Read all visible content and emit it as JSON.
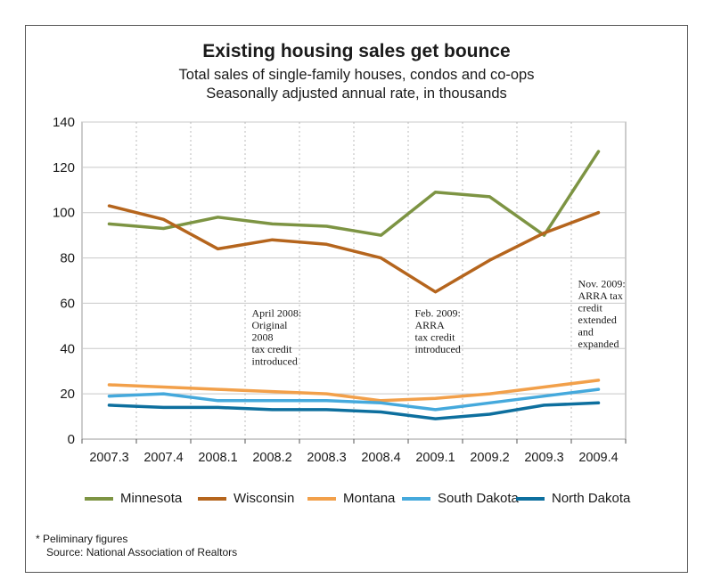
{
  "chart_data": {
    "type": "line",
    "title": "Existing housing sales get bounce",
    "subtitle": [
      "Total sales of single-family houses, condos and co-ops",
      "Seasonally adjusted annual rate, in thousands"
    ],
    "categories": [
      "2007.3",
      "2007.4",
      "2008.1",
      "2008.2",
      "2008.3",
      "2008.4",
      "2009.1",
      "2009.2",
      "2009.3",
      "2009.4"
    ],
    "ylim": [
      0,
      140
    ],
    "yticks": [
      0,
      20,
      40,
      60,
      80,
      100,
      120,
      140
    ],
    "grid": true,
    "legend_position": "bottom",
    "series": [
      {
        "name": "Minnesota",
        "color": "#7d9443",
        "values": [
          95,
          93,
          98,
          95,
          94,
          90,
          109,
          107,
          90,
          127
        ]
      },
      {
        "name": "Wisconsin",
        "color": "#b5651d",
        "values": [
          103,
          97,
          84,
          88,
          86,
          80,
          65,
          79,
          91,
          100
        ]
      },
      {
        "name": "Montana",
        "color": "#f2a04a",
        "values": [
          24,
          23,
          22,
          21,
          20,
          17,
          18,
          20,
          23,
          26
        ]
      },
      {
        "name": "South Dakota",
        "color": "#45a9dc",
        "values": [
          19,
          20,
          17,
          17,
          17,
          16,
          13,
          16,
          19,
          22
        ]
      },
      {
        "name": "North Dakota",
        "color": "#0d6f9e",
        "values": [
          15,
          14,
          14,
          13,
          13,
          12,
          9,
          11,
          15,
          16
        ]
      }
    ],
    "annotations": [
      {
        "category": "2008.2",
        "y": 54,
        "lines": [
          "April 2008:",
          "Original",
          "2008",
          "tax credit",
          "introduced"
        ]
      },
      {
        "category": "2009.1",
        "y": 54,
        "lines": [
          "Feb. 2009:",
          "ARRA",
          "tax credit",
          "introduced"
        ]
      },
      {
        "category": "2009.4",
        "y": 67,
        "lines": [
          "Nov. 2009:",
          "ARRA tax",
          "credit",
          "extended",
          "and",
          "expanded"
        ]
      }
    ]
  },
  "footnotes": {
    "note": "* Peliminary figures",
    "source": "Source: National Association of Realtors"
  }
}
